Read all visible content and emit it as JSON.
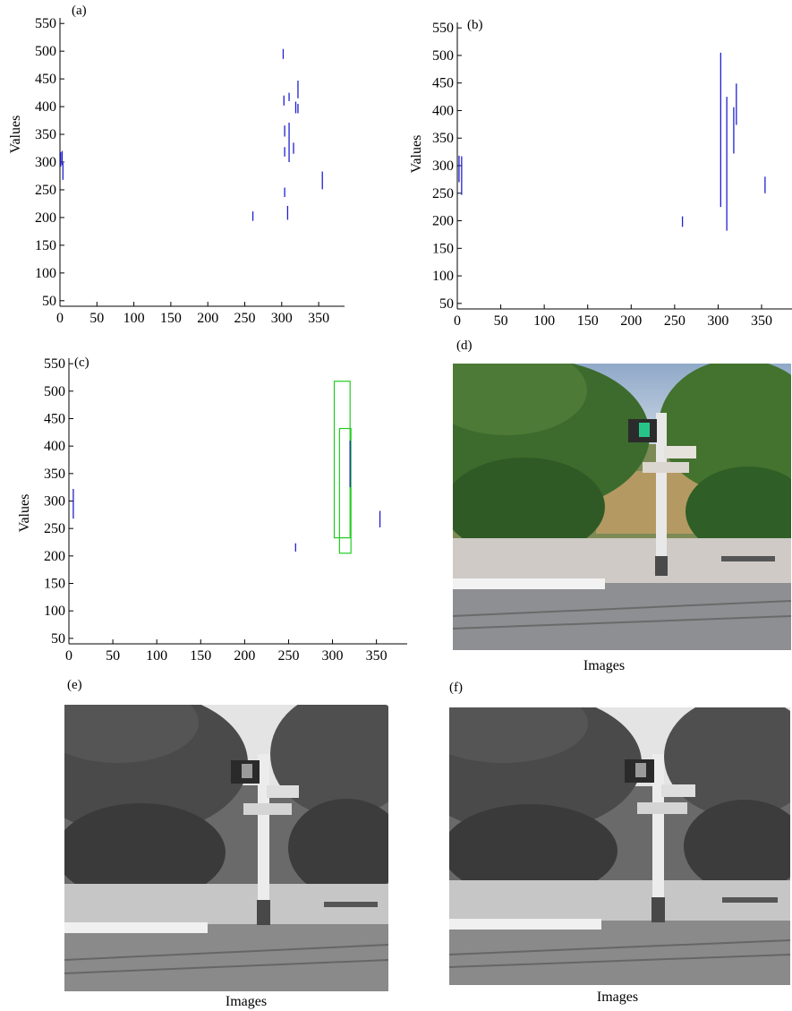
{
  "panels": {
    "a": {
      "label": "(a)"
    },
    "b": {
      "label": "(b)"
    },
    "c": {
      "label": "(c)"
    },
    "d": {
      "label": "(d)",
      "caption": "Images"
    },
    "e": {
      "label": "(e)",
      "caption": "Images"
    },
    "f": {
      "label": "(f)",
      "caption": "Images"
    }
  },
  "colors": {
    "segments": "#2020d0",
    "boxes": "#22cc22",
    "axis": "#000000"
  },
  "chart_data": [
    {
      "id": "a",
      "type": "scatter",
      "title": "",
      "xlabel": "",
      "ylabel": "Values",
      "xlim": [
        0,
        385
      ],
      "ylim": [
        40,
        560
      ],
      "xticks": [
        0,
        50,
        100,
        150,
        200,
        250,
        300,
        350
      ],
      "yticks": [
        50,
        100,
        150,
        200,
        250,
        300,
        350,
        400,
        450,
        500,
        550
      ],
      "segments": [
        {
          "x": 1,
          "y1": 292,
          "y2": 318
        },
        {
          "x": 3,
          "y1": 295,
          "y2": 320
        },
        {
          "x": 4,
          "y1": 268,
          "y2": 298
        },
        {
          "x": 261,
          "y1": 194,
          "y2": 211
        },
        {
          "x": 302,
          "y1": 486,
          "y2": 504
        },
        {
          "x": 303,
          "y1": 402,
          "y2": 420
        },
        {
          "x": 304,
          "y1": 346,
          "y2": 366
        },
        {
          "x": 304,
          "y1": 310,
          "y2": 327
        },
        {
          "x": 304,
          "y1": 237,
          "y2": 254
        },
        {
          "x": 308,
          "y1": 196,
          "y2": 221
        },
        {
          "x": 310,
          "y1": 410,
          "y2": 425
        },
        {
          "x": 310,
          "y1": 300,
          "y2": 371
        },
        {
          "x": 316,
          "y1": 315,
          "y2": 335
        },
        {
          "x": 319,
          "y1": 388,
          "y2": 409
        },
        {
          "x": 322,
          "y1": 388,
          "y2": 405
        },
        {
          "x": 322,
          "y1": 415,
          "y2": 447
        },
        {
          "x": 355,
          "y1": 251,
          "y2": 283
        }
      ]
    },
    {
      "id": "b",
      "type": "scatter",
      "title": "",
      "xlabel": "",
      "ylabel": "Values",
      "xlim": [
        0,
        385
      ],
      "ylim": [
        40,
        560
      ],
      "xticks": [
        0,
        50,
        100,
        150,
        200,
        250,
        300,
        350
      ],
      "yticks": [
        50,
        100,
        150,
        200,
        250,
        300,
        350,
        400,
        450,
        500,
        550
      ],
      "segments": [
        {
          "x": 2,
          "y1": 270,
          "y2": 318
        },
        {
          "x": 5,
          "y1": 247,
          "y2": 317
        },
        {
          "x": 259,
          "y1": 189,
          "y2": 208
        },
        {
          "x": 303,
          "y1": 225,
          "y2": 505
        },
        {
          "x": 310,
          "y1": 182,
          "y2": 425
        },
        {
          "x": 318,
          "y1": 322,
          "y2": 406
        },
        {
          "x": 321,
          "y1": 374,
          "y2": 449
        },
        {
          "x": 354,
          "y1": 250,
          "y2": 280
        }
      ]
    },
    {
      "id": "c",
      "type": "scatter",
      "title": "",
      "xlabel": "",
      "ylabel": "Values",
      "xlim": [
        0,
        385
      ],
      "ylim": [
        40,
        560
      ],
      "xticks": [
        0,
        50,
        100,
        150,
        200,
        250,
        300,
        350
      ],
      "yticks": [
        50,
        100,
        150,
        200,
        250,
        300,
        350,
        400,
        450,
        500,
        550
      ],
      "segments": [
        {
          "x": 5,
          "y1": 268,
          "y2": 322
        },
        {
          "x": 258,
          "y1": 208,
          "y2": 223
        },
        {
          "x": 320,
          "y1": 325,
          "y2": 410
        },
        {
          "x": 354,
          "y1": 252,
          "y2": 282
        }
      ],
      "boxes": [
        {
          "x0": 302,
          "x1": 320,
          "y0": 233,
          "y1": 518
        },
        {
          "x0": 308,
          "x1": 321,
          "y0": 205,
          "y1": 432
        }
      ]
    }
  ]
}
